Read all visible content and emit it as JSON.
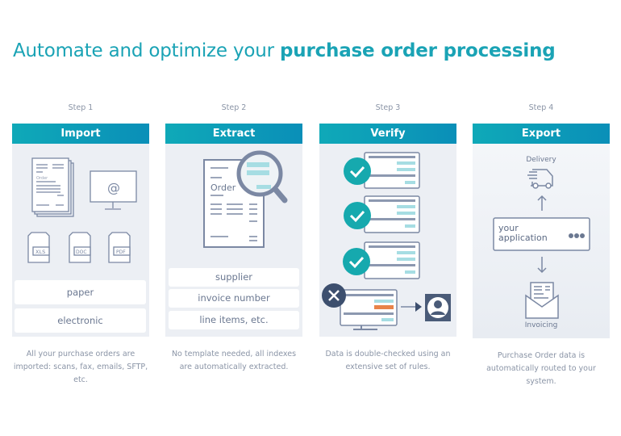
{
  "title": {
    "regular": "Automate and optimize your ",
    "bold": "purchase order processing"
  },
  "colors": {
    "accent": "#1aa3b5",
    "header_gradient": [
      "#0fa9b8",
      "#0a8fb8"
    ],
    "panel_bg": "#eceff4",
    "icon_stroke": "#7b88a3",
    "error": "#3d4f6e",
    "highlight": "#e8834a"
  },
  "steps": [
    {
      "step": "Step 1",
      "header": "Import",
      "icon_labels": {
        "doc": "Order",
        "file_types": [
          "XLS",
          "DOC",
          "PDF"
        ]
      },
      "boxes": [
        "paper",
        "electronic"
      ],
      "caption": "All your purchase orders are imported: scans, fax, emails, SFTP, etc."
    },
    {
      "step": "Step 2",
      "header": "Extract",
      "icon_labels": {
        "doc": "Order"
      },
      "boxes": [
        "supplier",
        "invoice number",
        "line items, etc."
      ],
      "caption": "No template needed, all indexes are automatically extracted."
    },
    {
      "step": "Step 3",
      "header": "Verify",
      "caption": "Data is double-checked using an extensive set of rules."
    },
    {
      "step": "Step 4",
      "header": "Export",
      "labels": {
        "top": "Delivery",
        "app": "your application",
        "bottom": "Invoicing"
      },
      "caption": "Purchase Order data is automatically routed to your system."
    }
  ]
}
